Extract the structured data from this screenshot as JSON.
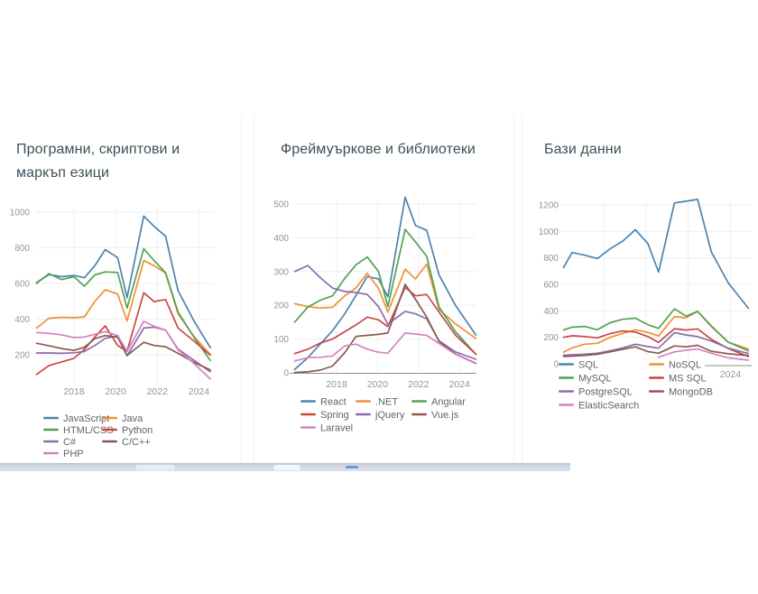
{
  "page": {
    "background": "#ffffff",
    "bottom_bar": {
      "color": "#cfd9e6",
      "thumb_color": "#6f9cc6",
      "pill_color": "#f3f6fa"
    }
  },
  "palette": {
    "blue": "#4d83ae",
    "orange": "#ee9136",
    "green": "#51a351",
    "red": "#c94745",
    "purple": "#8d6cac",
    "brown": "#8b5a50",
    "pink": "#d582c1",
    "grid": "#efefef",
    "axis_baseline": "#8f8f8f",
    "tick_text": "#8f959b",
    "legend_text": "#606468",
    "title_text": "#3d4f58"
  },
  "chart_data": [
    {
      "type": "line",
      "title": "Програмни, скриптови и маркъп езици",
      "title_lines": [
        "Програмни, скриптови и",
        "маркъп езици"
      ],
      "xlabel": "",
      "ylabel": "",
      "ylim": [
        40,
        1035
      ],
      "grid": true,
      "legend_position": "bottom",
      "legend_columns": 2,
      "x_grid_years": [
        2018,
        2020,
        2022,
        2024
      ],
      "x_axis_labels": [
        "2018",
        "2020",
        "2022",
        "2024"
      ],
      "y_ticks": [
        200,
        400,
        600,
        800,
        1000
      ],
      "x": [
        2016.2,
        2016.8,
        2017.4,
        2018,
        2018.5,
        2019,
        2019.5,
        2020.1,
        2020.55,
        2021.35,
        2021.85,
        2022.4,
        2023,
        2023.75,
        2024.55
      ],
      "series": [
        {
          "name": "JavaScript",
          "color": "#4d83ae",
          "values": [
            605,
            650,
            638,
            645,
            632,
            700,
            790,
            745,
            520,
            978,
            920,
            865,
            560,
            392,
            240
          ]
        },
        {
          "name": "Java",
          "color": "#ee9136",
          "values": [
            350,
            405,
            410,
            408,
            412,
            500,
            565,
            540,
            390,
            728,
            700,
            658,
            430,
            305,
            200
          ]
        },
        {
          "name": "HTML/CSS",
          "color": "#51a351",
          "values": [
            600,
            655,
            622,
            638,
            585,
            648,
            665,
            662,
            462,
            795,
            728,
            660,
            440,
            300,
            168
          ]
        },
        {
          "name": "Python",
          "color": "#c94745",
          "values": [
            90,
            140,
            160,
            180,
            230,
            300,
            362,
            252,
            220,
            548,
            498,
            510,
            350,
            278,
            198
          ]
        },
        {
          "name": "C#",
          "color": "#8d6cac",
          "values": [
            210,
            210,
            208,
            211,
            218,
            252,
            292,
            305,
            195,
            350,
            355,
            338,
            232,
            170,
            105
          ]
        },
        {
          "name": "C/C++",
          "color": "#8b5a50",
          "values": [
            265,
            250,
            235,
            225,
            242,
            290,
            308,
            298,
            196,
            270,
            252,
            245,
            208,
            158,
            115
          ]
        },
        {
          "name": "PHP",
          "color": "#d582c1",
          "values": [
            325,
            320,
            312,
            296,
            300,
            315,
            330,
            308,
            220,
            388,
            360,
            338,
            228,
            152,
            65
          ]
        }
      ]
    },
    {
      "type": "line",
      "title": "Фреймуъркове и библиотеки",
      "title_lines": [
        "Фреймуъркове и библиотеки"
      ],
      "xlabel": "",
      "ylabel": "",
      "ylim": [
        0,
        540
      ],
      "grid": true,
      "legend_position": "bottom",
      "legend_columns": 3,
      "x_grid_years": [
        2018,
        2020,
        2022,
        2024
      ],
      "x_axis_labels": [
        "2018",
        "2020",
        "2022",
        "2024"
      ],
      "y_ticks": [
        0,
        100,
        200,
        300,
        400,
        500
      ],
      "x": [
        2015.95,
        2016.6,
        2017.2,
        2017.8,
        2018.4,
        2018.95,
        2019.5,
        2020.05,
        2020.5,
        2021.35,
        2021.85,
        2022.4,
        2023,
        2023.8,
        2024.8
      ],
      "series": [
        {
          "name": "React",
          "color": "#4d83ae",
          "values": [
            10,
            45,
            85,
            125,
            175,
            230,
            285,
            278,
            225,
            520,
            437,
            422,
            290,
            200,
            112
          ]
        },
        {
          "name": ".NET",
          "color": "#ee9136",
          "values": [
            205,
            196,
            192,
            194,
            228,
            252,
            295,
            250,
            180,
            307,
            278,
            322,
            188,
            145,
            102
          ]
        },
        {
          "name": "Angular",
          "color": "#51a351",
          "values": [
            150,
            195,
            215,
            228,
            280,
            320,
            343,
            300,
            196,
            425,
            388,
            345,
            195,
            122,
            55
          ]
        },
        {
          "name": "Spring",
          "color": "#c94745",
          "values": [
            57,
            70,
            88,
            100,
            122,
            142,
            165,
            157,
            137,
            253,
            228,
            232,
            180,
            112,
            55
          ]
        },
        {
          "name": "jQuery",
          "color": "#8d6cac",
          "values": [
            300,
            318,
            282,
            251,
            241,
            238,
            232,
            196,
            144,
            182,
            175,
            160,
            95,
            62,
            40
          ]
        },
        {
          "name": "Vue.js",
          "color": "#8b5a50",
          "values": [
            1,
            3,
            8,
            20,
            60,
            108,
            111,
            114,
            118,
            262,
            218,
            165,
            93,
            56,
            28
          ]
        },
        {
          "name": "Laravel",
          "color": "#d582c1",
          "values": [
            35,
            45,
            46,
            50,
            80,
            85,
            70,
            61,
            58,
            118,
            115,
            111,
            87,
            55,
            27
          ]
        }
      ]
    },
    {
      "type": "line",
      "title": "Бази данни",
      "title_lines": [
        "Бази данни"
      ],
      "xlabel": "",
      "ylabel": "",
      "ylim": [
        0,
        1290
      ],
      "grid": true,
      "legend_position": "bottom-overlap",
      "legend_columns": 2,
      "x_grid_years": [
        2018,
        2020,
        2022,
        2024
      ],
      "x_axis_labels": [
        "2024"
      ],
      "y_ticks": [
        0,
        200,
        400,
        600,
        800,
        1000,
        1200
      ],
      "x": [
        2016.1,
        2016.5,
        2017.1,
        2017.7,
        2018.3,
        2018.9,
        2019.5,
        2020.1,
        2020.6,
        2021.35,
        2021.9,
        2022.45,
        2023.1,
        2023.9,
        2024.85
      ],
      "series": [
        {
          "name": "SQL",
          "color": "#4d83ae",
          "values": [
            727,
            840,
            820,
            795,
            868,
            927,
            1013,
            907,
            693,
            1215,
            1228,
            1242,
            845,
            610,
            420
          ]
        },
        {
          "name": "NoSQL",
          "color": "#ee9136",
          "values": [
            88,
            120,
            148,
            155,
            200,
            230,
            257,
            237,
            210,
            357,
            347,
            397,
            288,
            163,
            112
          ]
        },
        {
          "name": "MySQL",
          "color": "#51a351",
          "values": [
            255,
            277,
            282,
            257,
            310,
            336,
            345,
            295,
            267,
            415,
            360,
            395,
            282,
            163,
            98
          ]
        },
        {
          "name": "MS SQL",
          "color": "#c94745",
          "values": [
            200,
            212,
            206,
            196,
            228,
            248,
            240,
            205,
            162,
            265,
            255,
            264,
            185,
            115,
            55
          ]
        },
        {
          "name": "PostgreSQL",
          "color": "#8d6cac",
          "values": [
            65,
            68,
            72,
            80,
            98,
            120,
            148,
            130,
            118,
            235,
            218,
            205,
            172,
            118,
            78
          ]
        },
        {
          "name": "MongoDB",
          "color": "#8b5a50",
          "values": [
            55,
            58,
            63,
            72,
            90,
            110,
            128,
            92,
            80,
            135,
            128,
            140,
            95,
            76,
            62
          ]
        },
        {
          "name": "ElasticSearch",
          "color": "#d582c1",
          "values": [
            null,
            null,
            null,
            null,
            null,
            null,
            null,
            null,
            50,
            90,
            103,
            112,
            80,
            45,
            28
          ]
        }
      ]
    }
  ]
}
